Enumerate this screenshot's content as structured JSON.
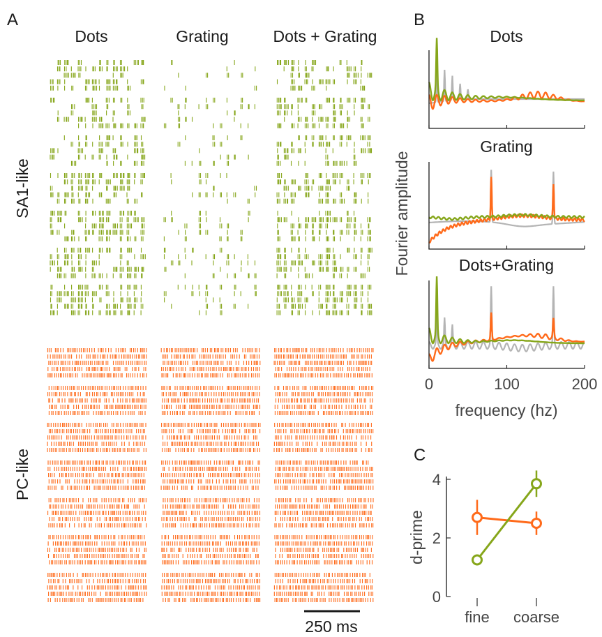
{
  "panels": {
    "a": "A",
    "b": "B",
    "c": "C"
  },
  "raster": {
    "columns": [
      "Dots",
      "Grating",
      "Dots + Grating"
    ],
    "rows": [
      "SA1-like",
      "PC-like"
    ],
    "scale_bar": "250 ms",
    "colors": {
      "SA1-like": "#86a61a",
      "PC-like": "#ff6a1a"
    }
  },
  "chart_data": [
    {
      "type": "line",
      "subplots": [
        "Dots",
        "Grating",
        "Dots+Grating"
      ],
      "xlabel": "frequency (hz)",
      "ylabel": "Fourier amplitude",
      "xlim": [
        0,
        200
      ],
      "xticks": [
        0,
        100,
        200
      ],
      "series": [
        {
          "name": "SA1-like",
          "color": "#86a61a"
        },
        {
          "name": "PC-like",
          "color": "#ff6a1a"
        },
        {
          "name": "",
          "color": "#b4b4b4"
        }
      ],
      "peaks": {
        "Dots": [
          10
        ],
        "Grating": [
          80,
          160
        ],
        "Dots+Grating": [
          10,
          80,
          160
        ]
      }
    },
    {
      "type": "line",
      "categories": [
        "fine",
        "coarse"
      ],
      "ylabel": "d-prime",
      "ylim": [
        0,
        4
      ],
      "yticks": [
        0,
        2,
        4
      ],
      "series": [
        {
          "name": "SA1-like",
          "color": "#86a61a",
          "values": [
            1.25,
            3.85
          ],
          "errors": [
            0.0,
            0.45
          ]
        },
        {
          "name": "PC-like",
          "color": "#ff6a1a",
          "values": [
            2.7,
            2.5
          ],
          "errors": [
            0.6,
            0.4
          ]
        }
      ]
    }
  ]
}
